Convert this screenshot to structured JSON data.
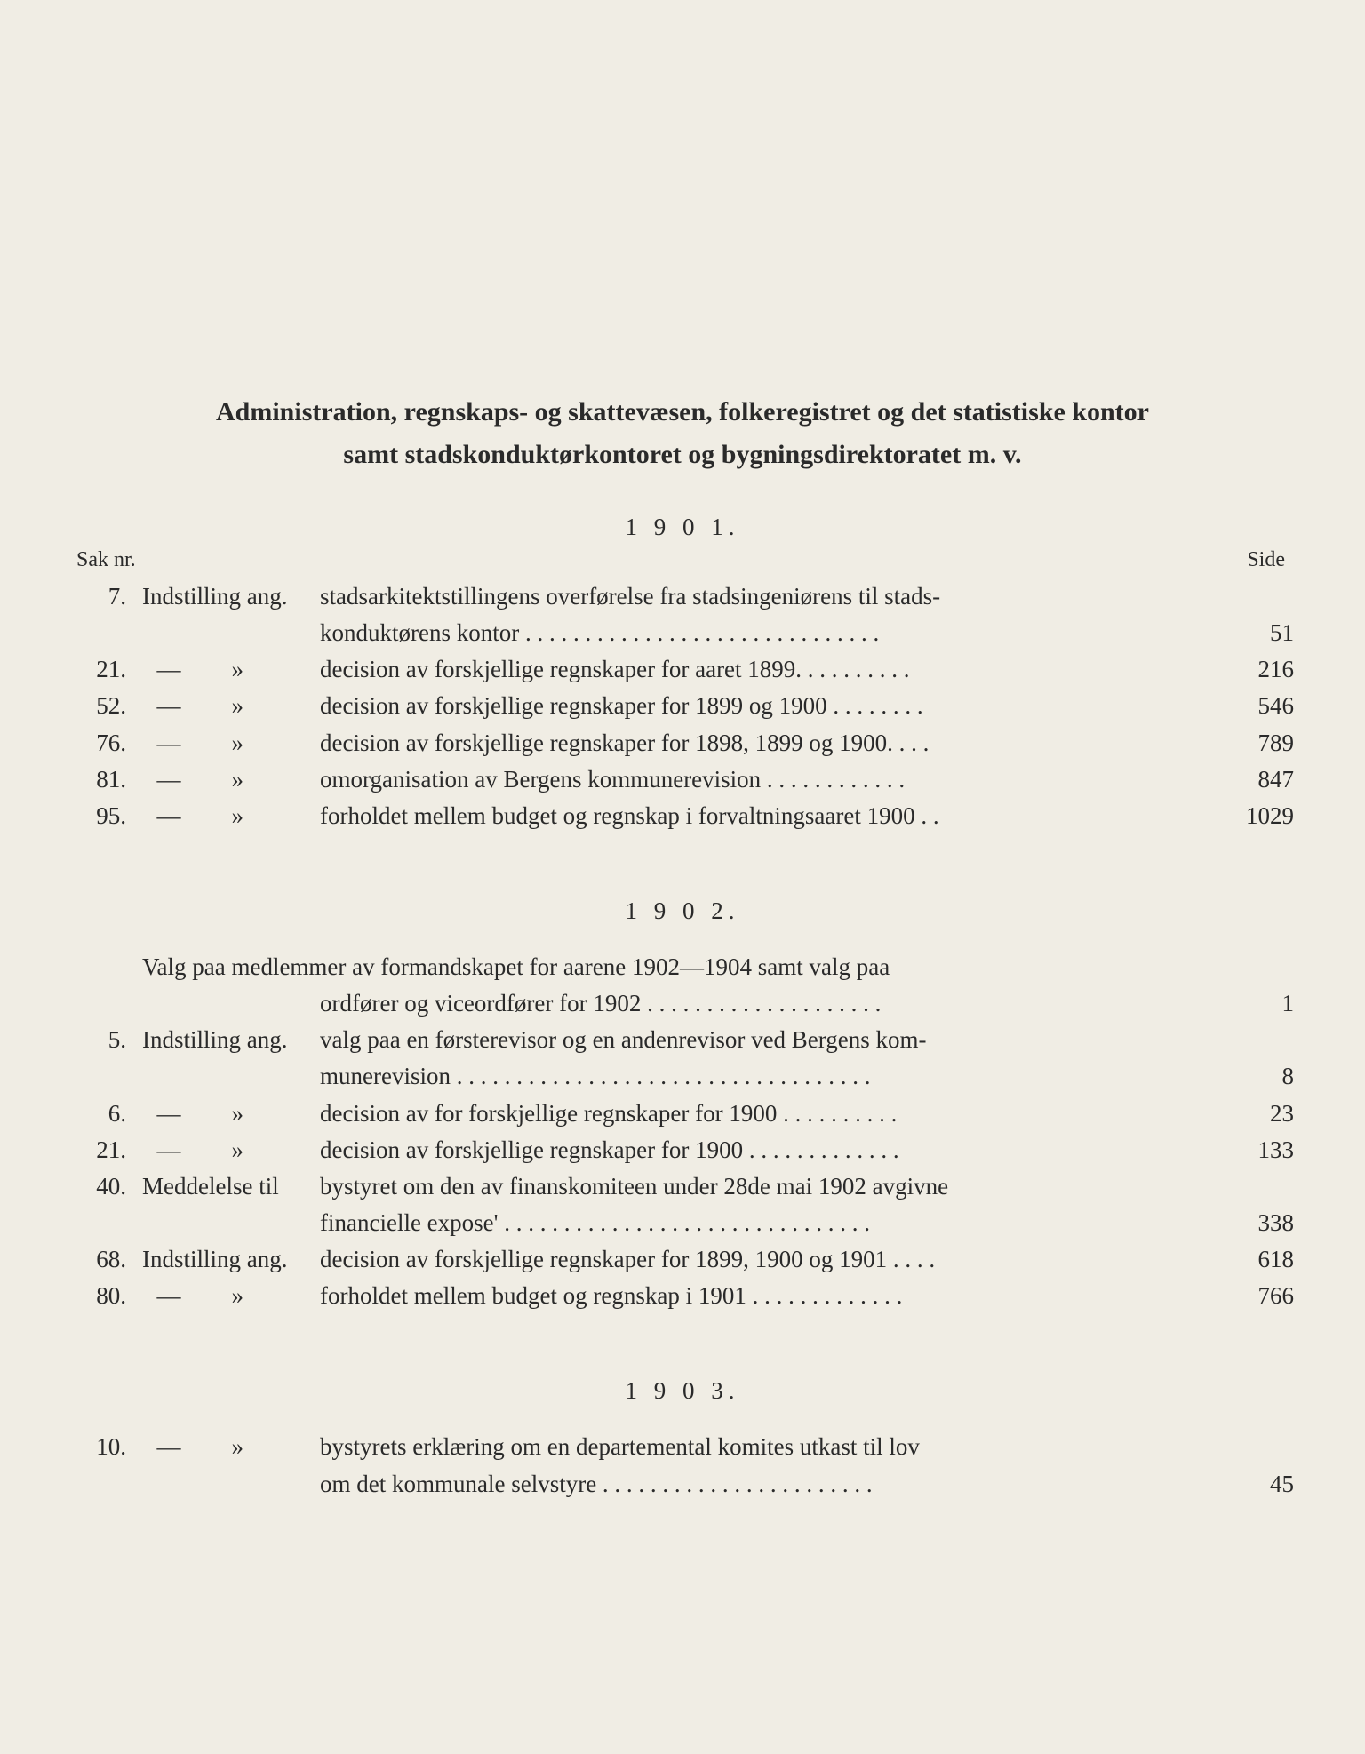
{
  "title": {
    "line1": "Administration, regnskaps- og skattevæsen, folkeregistret og det statistiske kontor",
    "line2": "samt stadskonduktørkontoret og bygningsdirektoratet m. v."
  },
  "labels": {
    "sak_nr": "Sak nr.",
    "side": "Side"
  },
  "sections": [
    {
      "year": "1 9 0 1.",
      "show_headers": true,
      "entries": [
        {
          "num": "7.",
          "type_full": "Indstilling ang.",
          "lines": [
            "stadsarkitektstillingens overførelse fra stadsingeniørens til stads-",
            "konduktørens kontor . . . . . . . . . . . . . . . . . . . . . . . . . . . . . ."
          ],
          "page": "51"
        },
        {
          "num": "21.",
          "type_dash": "—",
          "type_quote": "»",
          "lines": [
            "decision av forskjellige regnskaper for aaret 1899. . . . . . . . . ."
          ],
          "page": "216"
        },
        {
          "num": "52.",
          "type_dash": "—",
          "type_quote": "»",
          "lines": [
            "decision av forskjellige regnskaper for 1899 og 1900 . . . . . . . ."
          ],
          "page": "546"
        },
        {
          "num": "76.",
          "type_dash": "—",
          "type_quote": "»",
          "lines": [
            "decision av forskjellige regnskaper for 1898, 1899 og 1900. . . ."
          ],
          "page": "789"
        },
        {
          "num": "81.",
          "type_dash": "—",
          "type_quote": "»",
          "lines": [
            "omorganisation av Bergens kommunerevision . . . . . . . . . . . ."
          ],
          "page": "847"
        },
        {
          "num": "95.",
          "type_dash": "—",
          "type_quote": "»",
          "lines": [
            "forholdet mellem budget og regnskap i forvaltningsaaret 1900 . ."
          ],
          "page": "1029"
        }
      ]
    },
    {
      "year": "1 9 0 2.",
      "show_headers": false,
      "entries": [
        {
          "num": "",
          "type_full": "",
          "lines_offset": true,
          "lines": [
            "Valg paa medlemmer av formandskapet for aarene 1902—1904 samt valg paa",
            "ordfører og viceordfører for 1902  . . . . . . . . . . . . . . . . . . . ."
          ],
          "page": "1"
        },
        {
          "num": "5.",
          "type_full": "Indstilling ang.",
          "lines": [
            "valg paa en førsterevisor og en andenrevisor ved Bergens kom-",
            "munerevision . . . . . . . . . . . . . . . . . . . . . . . . . . . . . . . . . . ."
          ],
          "page": "8"
        },
        {
          "num": "6.",
          "type_dash": "—",
          "type_quote": "»",
          "lines": [
            "decision av for forskjellige regnskaper for 1900  . . . . . . . . . ."
          ],
          "page": "23"
        },
        {
          "num": "21.",
          "type_dash": "—",
          "type_quote": "»",
          "lines": [
            "decision av forskjellige regnskaper for 1900 . . . . . . . . . . . . ."
          ],
          "page": "133"
        },
        {
          "num": "40.",
          "type_full": "Meddelelse  til",
          "lines": [
            "bystyret om den av finanskomiteen under 28de mai 1902 avgivne",
            "financielle expose' . . . . . . . . . . . . . . . . . . . . . . . . . . . . . . ."
          ],
          "page": "338"
        },
        {
          "num": "68.",
          "type_full": "Indstilling ang.",
          "lines": [
            "decision av forskjellige regnskaper for 1899, 1900 og 1901 . . . ."
          ],
          "page": "618"
        },
        {
          "num": "80.",
          "type_dash": "—",
          "type_quote": "»",
          "lines": [
            "forholdet mellem budget og regnskap i 1901 . . . . . . . . . . . . ."
          ],
          "page": "766"
        }
      ]
    },
    {
      "year": "1 9 0 3.",
      "show_headers": false,
      "entries": [
        {
          "num": "10.",
          "type_dash": "—",
          "type_quote": "»",
          "lines": [
            "bystyrets erklæring om en departemental komites utkast til lov",
            "om det kommunale selvstyre . . . . . . . . . . . . . . . . . . . . . . ."
          ],
          "page": "45"
        }
      ]
    }
  ],
  "styling": {
    "background_color": "#f0ede4",
    "text_color": "#2a2a2a",
    "title_fontsize": 30,
    "body_fontsize": 27,
    "label_fontsize": 24
  }
}
